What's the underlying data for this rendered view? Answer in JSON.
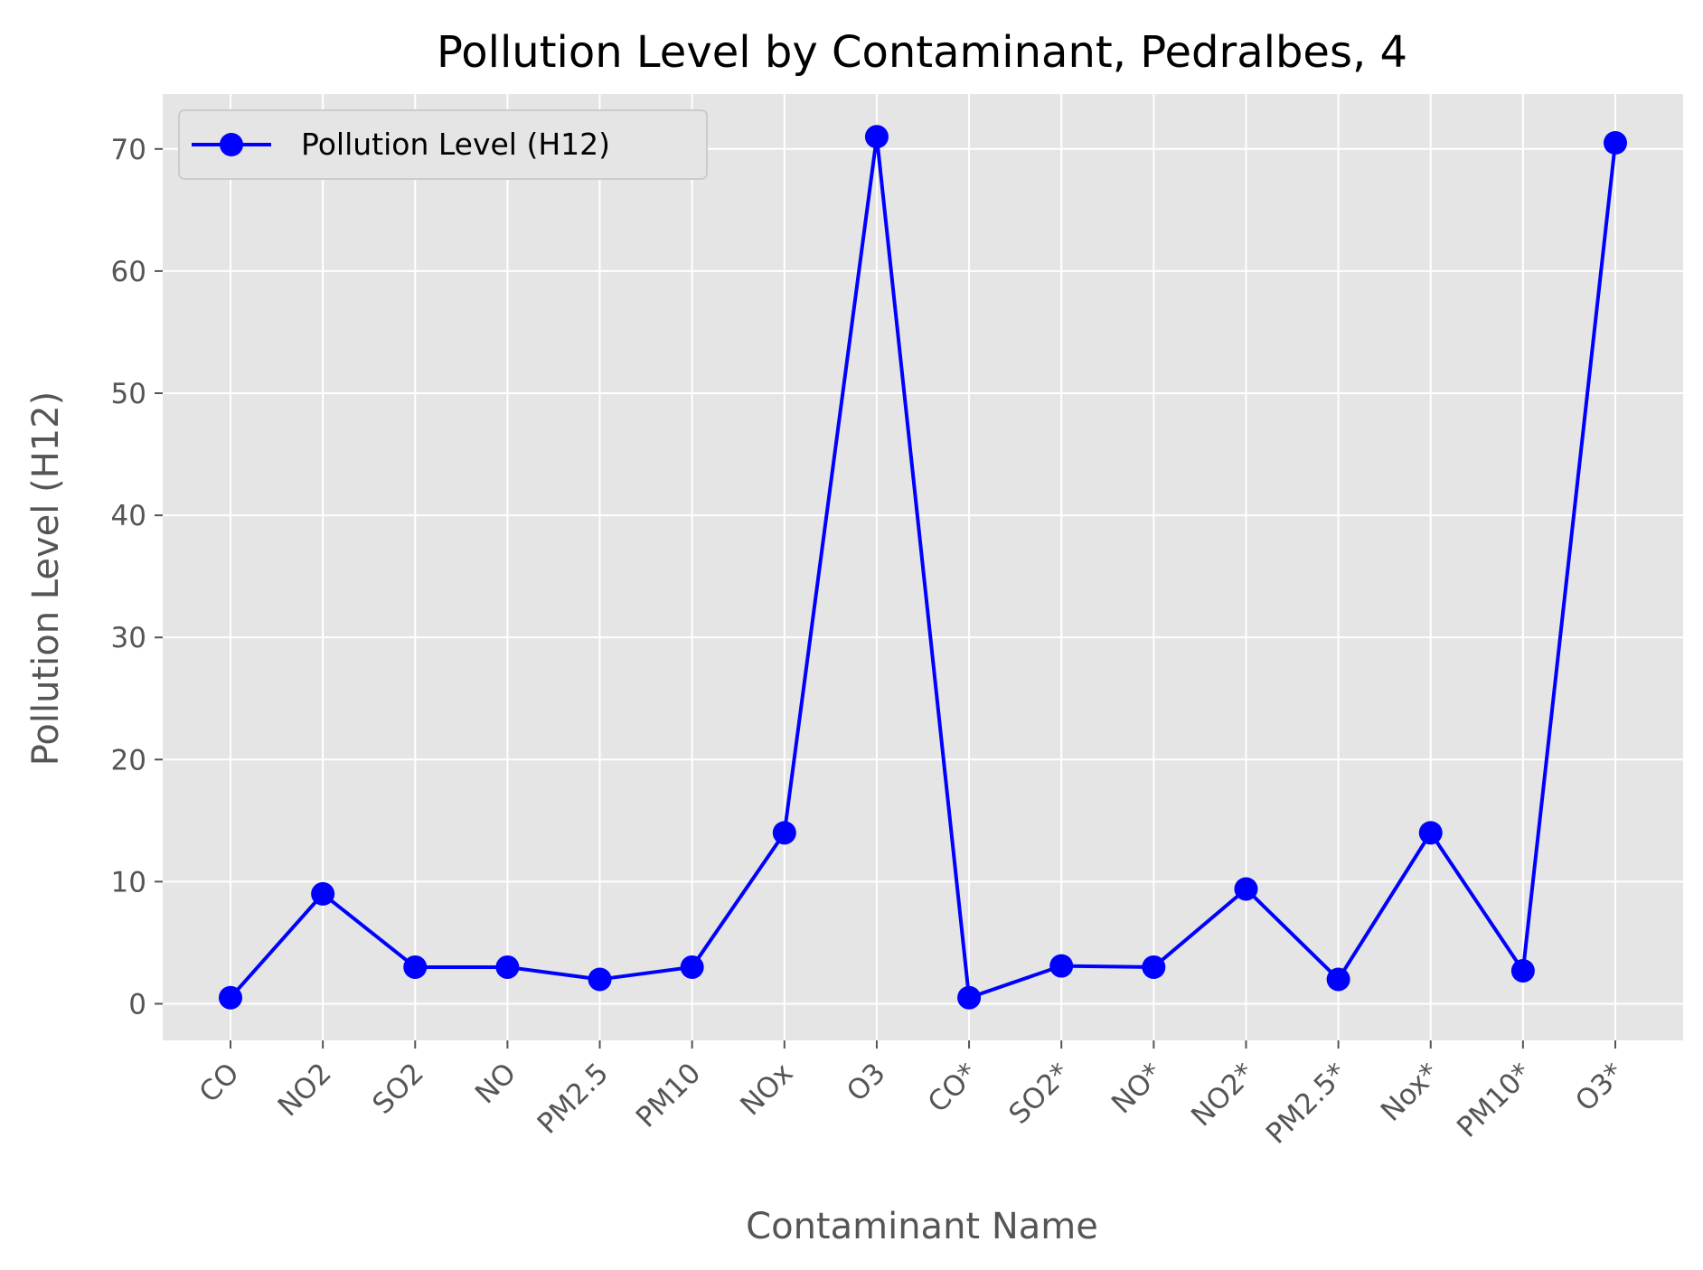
{
  "chart_data": {
    "type": "line",
    "title": "Pollution Level by Contaminant, Pedralbes, 4",
    "xlabel": "Contaminant Name",
    "ylabel": "Pollution Level (H12)",
    "categories": [
      "CO",
      "NO2",
      "SO2",
      "NO",
      "PM2.5",
      "PM10",
      "NOx",
      "O3",
      "CO*",
      "SO2*",
      "NO*",
      "NO2*",
      "PM2.5*",
      "Nox*",
      "PM10*",
      "O3*"
    ],
    "series": [
      {
        "name": "Pollution Level (H12)",
        "values": [
          0.5,
          9.0,
          3.0,
          3.0,
          2.0,
          3.0,
          14.0,
          71.0,
          0.5,
          3.1,
          3.0,
          9.4,
          2.0,
          14.0,
          2.7,
          70.5
        ],
        "color": "#0000ff",
        "marker": "circle"
      }
    ],
    "ylim": [
      -3,
      74.5
    ],
    "yticks": [
      0,
      10,
      20,
      30,
      40,
      50,
      60,
      70
    ],
    "grid": true,
    "legend_position": "top-left",
    "plot_background": "#e5e5e5",
    "grid_color": "#ffffff"
  }
}
